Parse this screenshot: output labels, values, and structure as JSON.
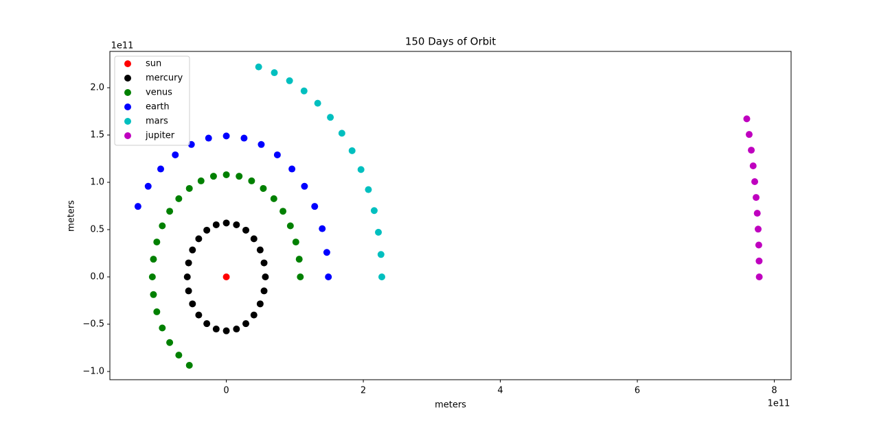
{
  "chart_data": {
    "type": "scatter",
    "title": "150 Days of Orbit",
    "x_label": "meters",
    "y_label": "meters",
    "x_offset_label": "1e11",
    "y_offset_label": "1e11",
    "xlim": [
      -1.7,
      8.245
    ],
    "ylim": [
      -1.087,
      2.384
    ],
    "xticks": [
      0,
      2,
      4,
      6,
      8
    ],
    "yticks": [
      {
        "value": -1,
        "label": "−1.0"
      },
      {
        "value": -0.5,
        "label": "−0.5"
      },
      {
        "value": 0,
        "label": "0.0"
      },
      {
        "value": 0.5,
        "label": "0.5"
      },
      {
        "value": 1,
        "label": "1.0"
      },
      {
        "value": 1.5,
        "label": "1.5"
      },
      {
        "value": 2,
        "label": "2.0"
      }
    ],
    "legend": "upper left",
    "series": [
      {
        "name": "sun",
        "color": "#ff0000",
        "x": [
          0
        ],
        "y": [
          0
        ]
      },
      {
        "name": "mercury",
        "color": "#000000",
        "x": [
          0.57,
          0.551,
          0.494,
          0.403,
          0.285,
          0.148,
          0,
          -0.148,
          -0.285,
          -0.403,
          -0.494,
          -0.551,
          -0.57,
          -0.551,
          -0.494,
          -0.403,
          -0.285,
          -0.148,
          0,
          0.148,
          0.285,
          0.403,
          0.494,
          0.551
        ],
        "y": [
          0,
          0.148,
          0.285,
          0.403,
          0.494,
          0.551,
          0.57,
          0.551,
          0.494,
          0.403,
          0.285,
          0.148,
          0,
          -0.148,
          -0.285,
          -0.403,
          -0.494,
          -0.551,
          -0.57,
          -0.551,
          -0.494,
          -0.403,
          -0.285,
          -0.148
        ]
      },
      {
        "name": "venus",
        "color": "#008000",
        "x": [
          1.08,
          1.064,
          1.015,
          0.935,
          0.827,
          0.694,
          0.54,
          0.369,
          0.187,
          0,
          -0.187,
          -0.369,
          -0.54,
          -0.694,
          -0.827,
          -0.935,
          -1.015,
          -1.064,
          -1.08,
          -1.064,
          -1.015,
          -0.935,
          -0.827,
          -0.694,
          -0.54
        ],
        "y": [
          0,
          0.187,
          0.369,
          0.54,
          0.694,
          0.827,
          0.935,
          1.015,
          1.064,
          1.08,
          1.064,
          1.015,
          0.935,
          0.827,
          0.694,
          0.54,
          0.369,
          0.187,
          0,
          -0.187,
          -0.369,
          -0.54,
          -0.694,
          -0.827,
          -0.935
        ]
      },
      {
        "name": "earth",
        "color": "#0000ff",
        "x": [
          1.49,
          1.467,
          1.4,
          1.29,
          1.141,
          0.958,
          0.745,
          0.51,
          0.259,
          0,
          -0.259,
          -0.51,
          -0.745,
          -0.958,
          -1.141,
          -1.29
        ],
        "y": [
          0,
          0.259,
          0.51,
          0.745,
          0.958,
          1.141,
          1.29,
          1.4,
          1.467,
          1.49,
          1.467,
          1.4,
          1.29,
          1.141,
          0.958,
          0.745
        ]
      },
      {
        "name": "mars",
        "color": "#00bfbf",
        "x": [
          2.27,
          2.258,
          2.22,
          2.159,
          2.074,
          1.966,
          1.836,
          1.687,
          1.519,
          1.334,
          1.135,
          0.923,
          0.701,
          0.472
        ],
        "y": [
          0,
          0.237,
          0.472,
          0.701,
          0.923,
          1.135,
          1.334,
          1.519,
          1.687,
          1.836,
          1.966,
          2.074,
          2.159,
          2.22
        ]
      },
      {
        "name": "jupiter",
        "color": "#bf00bf",
        "x": [
          7.78,
          7.778,
          7.773,
          7.764,
          7.751,
          7.734,
          7.714,
          7.691,
          7.664,
          7.633,
          7.598
        ],
        "y": [
          0,
          0.168,
          0.337,
          0.505,
          0.673,
          0.84,
          1.007,
          1.174,
          1.34,
          1.506,
          1.671
        ]
      }
    ]
  }
}
